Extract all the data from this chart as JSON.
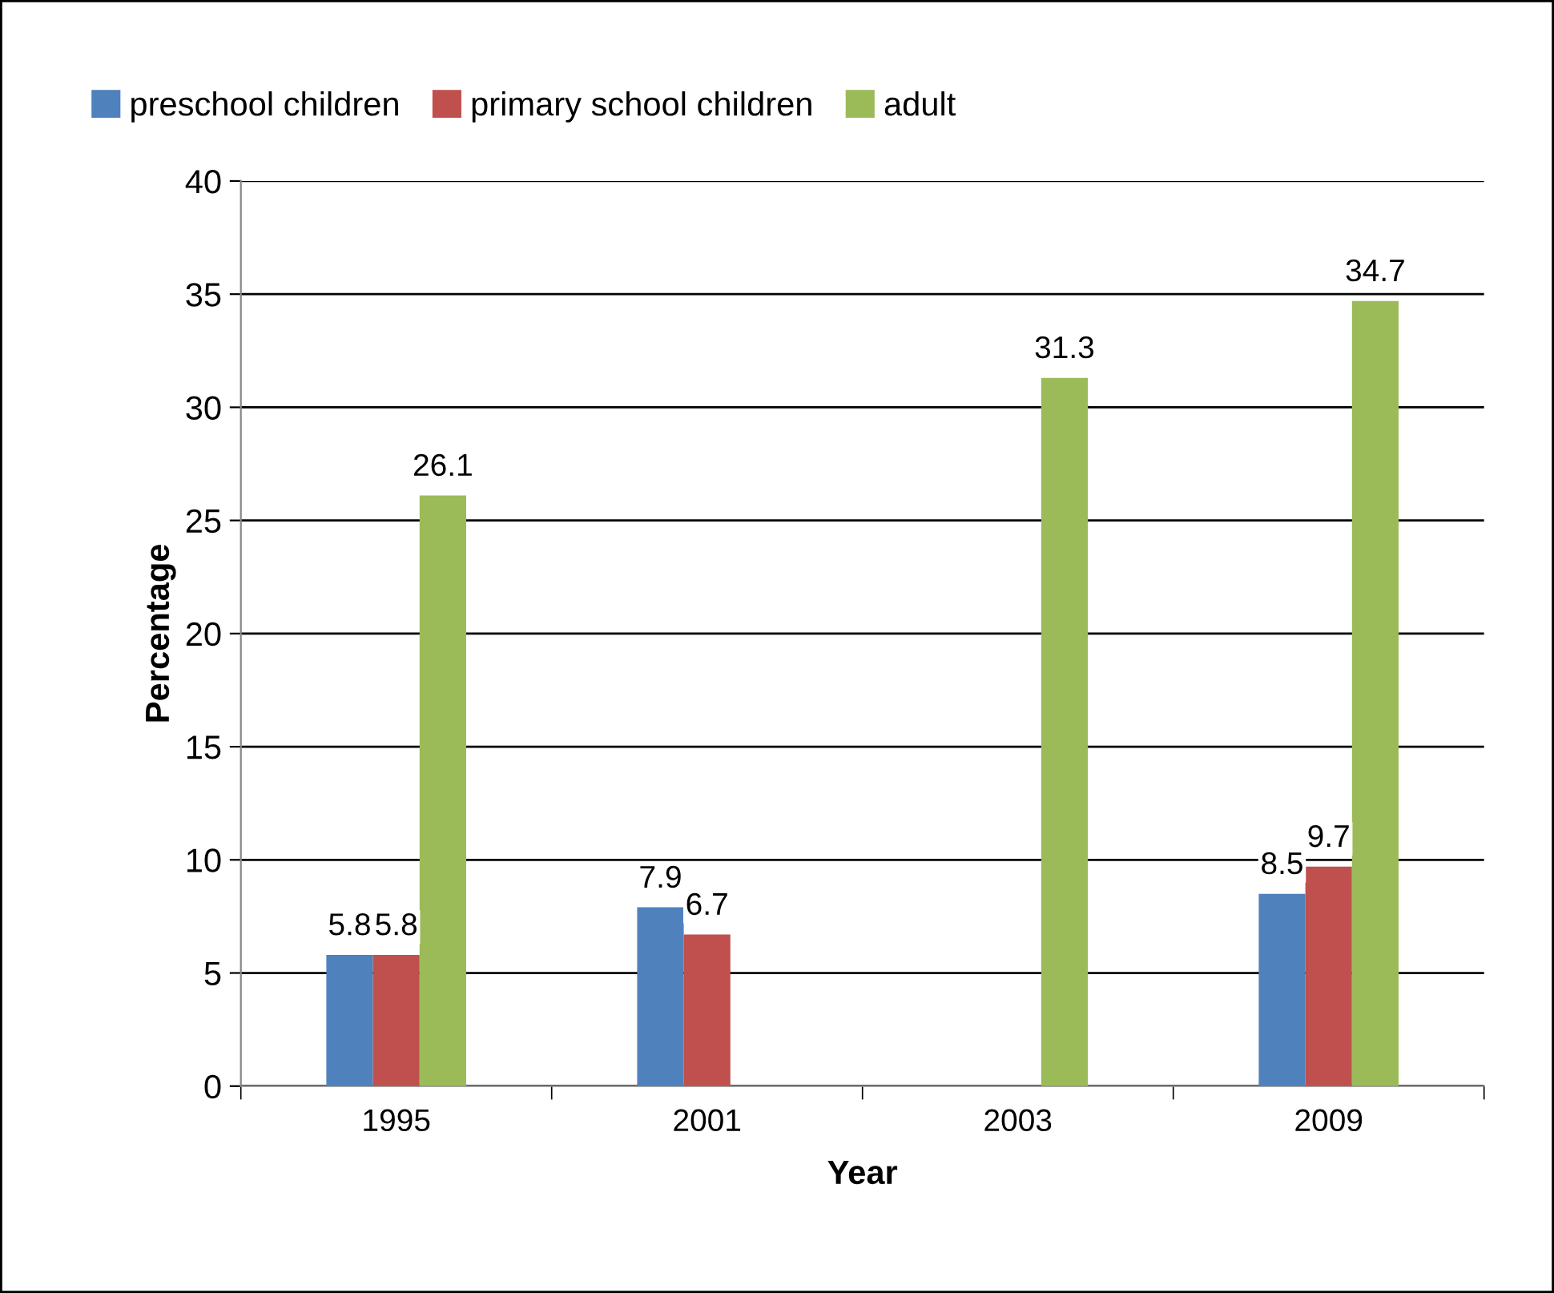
{
  "chart_data": {
    "type": "bar",
    "xlabel": "Year",
    "ylabel": "Percentage",
    "categories": [
      "1995",
      "2001",
      "2003",
      "2009"
    ],
    "series": [
      {
        "name": "preschool children",
        "color": "#4f81bd",
        "values": [
          5.8,
          7.9,
          null,
          8.5
        ]
      },
      {
        "name": "primary school children",
        "color": "#c0504d",
        "values": [
          5.8,
          6.7,
          null,
          9.7
        ]
      },
      {
        "name": "adult",
        "color": "#9bbb59",
        "values": [
          26.1,
          null,
          31.3,
          34.7
        ]
      }
    ],
    "ylim": [
      0,
      40
    ],
    "yticks": [
      0,
      5,
      10,
      15,
      20,
      25,
      30,
      35,
      40
    ],
    "grid": "y",
    "legend": "top left",
    "data_labels": true
  }
}
